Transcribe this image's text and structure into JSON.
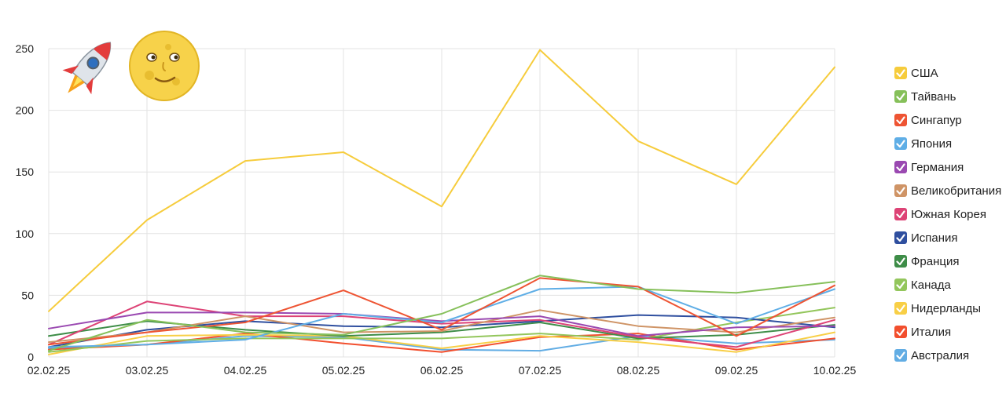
{
  "chart_data": {
    "type": "line",
    "title": "",
    "xlabel": "",
    "ylabel": "",
    "ylim": [
      0,
      250
    ],
    "yticks": [
      0,
      50,
      100,
      150,
      200,
      250
    ],
    "grid": true,
    "legend_position": "right",
    "categories": [
      "02.02.25",
      "03.02.25",
      "04.02.25",
      "05.02.25",
      "06.02.25",
      "07.02.25",
      "08.02.25",
      "09.02.25",
      "10.02.25"
    ],
    "highlighted_categories": [
      "02.02.25",
      "08.02.25",
      "09.02.25"
    ],
    "highlight_color": "#cc1a1a",
    "decorations": [
      "rocket",
      "full-moon-face"
    ],
    "series": [
      {
        "name": "США",
        "color": "#f6cc3c",
        "values": [
          37,
          111,
          159,
          166,
          122,
          249,
          175,
          140,
          235
        ]
      },
      {
        "name": "Тайвань",
        "color": "#86c05a",
        "values": [
          5,
          30,
          20,
          18,
          35,
          66,
          55,
          52,
          61
        ]
      },
      {
        "name": "Сингапур",
        "color": "#ee5433",
        "values": [
          10,
          20,
          28,
          54,
          22,
          64,
          57,
          17,
          58
        ]
      },
      {
        "name": "Япония",
        "color": "#5faee6",
        "values": [
          8,
          10,
          14,
          35,
          28,
          55,
          57,
          27,
          55
        ]
      },
      {
        "name": "Германия",
        "color": "#9a49b1",
        "values": [
          23,
          36,
          36,
          35,
          29,
          33,
          17,
          24,
          25
        ]
      },
      {
        "name": "Великобритания",
        "color": "#cf9466",
        "values": [
          12,
          20,
          33,
          20,
          21,
          38,
          25,
          20,
          32
        ]
      },
      {
        "name": "Южная Корея",
        "color": "#dd4376",
        "values": [
          10,
          45,
          33,
          33,
          27,
          30,
          16,
          8,
          30
        ]
      },
      {
        "name": "Испания",
        "color": "#2f4f9f",
        "values": [
          8,
          22,
          29,
          25,
          24,
          29,
          34,
          32,
          24
        ]
      },
      {
        "name": "Франция",
        "color": "#3e8d48",
        "values": [
          17,
          29,
          22,
          17,
          20,
          28,
          15,
          18,
          26
        ]
      },
      {
        "name": "Канада",
        "color": "#93c65c",
        "values": [
          4,
          13,
          15,
          15,
          15,
          19,
          14,
          28,
          40
        ]
      },
      {
        "name": "Нидерланды",
        "color": "#f8cf46",
        "values": [
          2,
          17,
          18,
          17,
          7,
          17,
          12,
          4,
          20
        ]
      },
      {
        "name": "Италия",
        "color": "#f24f2e",
        "values": [
          6,
          10,
          19,
          11,
          4,
          16,
          19,
          6,
          15
        ]
      },
      {
        "name": "Австралия",
        "color": "#62ade4",
        "values": [
          7,
          10,
          17,
          16,
          6,
          5,
          17,
          11,
          14
        ]
      }
    ]
  }
}
